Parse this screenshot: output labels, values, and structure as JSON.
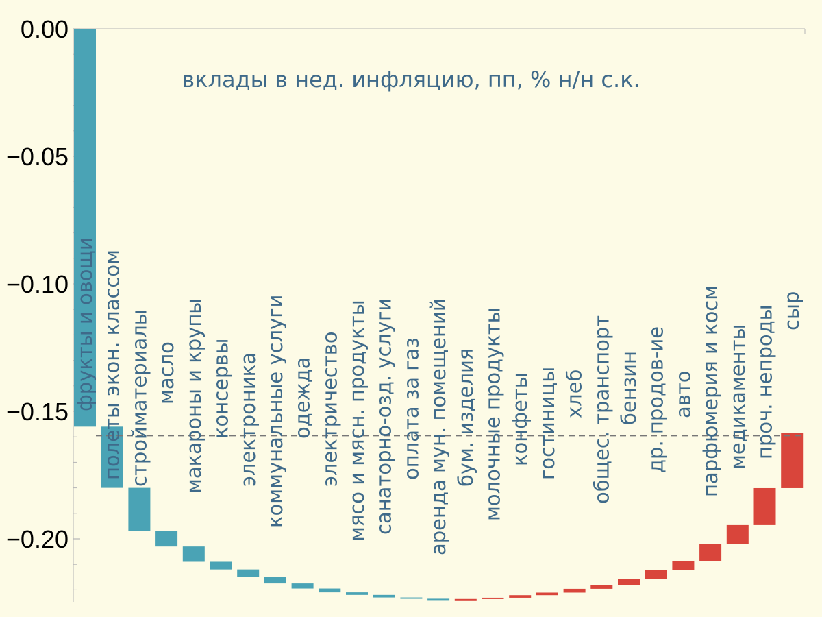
{
  "colors": {
    "background": "#fdfbe6",
    "positive_bar": "#4aa3b5",
    "negative_bar": "#d9453b",
    "label_text": "#3f6a8a",
    "dashed_line": "#777777",
    "axis": "#b5b5b5"
  },
  "chart_data": {
    "type": "bar",
    "subtype": "waterfall",
    "title": "вклады в нед. инфляцию, пп, % н/н с.к.",
    "ylim": [
      -0.225,
      0.0
    ],
    "yticks": [
      0.0,
      -0.05,
      -0.1,
      -0.15,
      -0.2
    ],
    "ytick_labels": [
      "0.00",
      "−0.05",
      "−0.10",
      "−0.15",
      "−0.20"
    ],
    "total_line": -0.1595,
    "categories": [
      "фрукты и овощи",
      "полеты экон. классом",
      "стройматериалы",
      "масло",
      "макароны и крупы",
      "консервы",
      "электроника",
      "коммунальные услуги",
      "одежда",
      "электричество",
      "мясо и мясн. продукты",
      "санаторно-озд. услуги",
      "оплата за газ",
      "аренда мун. помещений",
      "бум. изделия",
      "молочные продукты",
      "конфеты",
      "гостиницы",
      "хлеб",
      "общес. транспорт",
      "бензин",
      "др. продов-ие",
      "авто",
      "парфюмерия и косм",
      "медикаменты",
      "проч. непроды",
      "сыр"
    ],
    "values": [
      -0.156,
      -0.024,
      -0.017,
      -0.006,
      -0.006,
      -0.003,
      -0.003,
      -0.0025,
      -0.002,
      -0.0015,
      -0.001,
      -0.001,
      -0.0005,
      -0.0003,
      0.0002,
      0.0005,
      0.001,
      0.001,
      0.0015,
      0.0015,
      0.0025,
      0.0035,
      0.0035,
      0.0065,
      0.0075,
      0.0145,
      0.0215
    ]
  }
}
